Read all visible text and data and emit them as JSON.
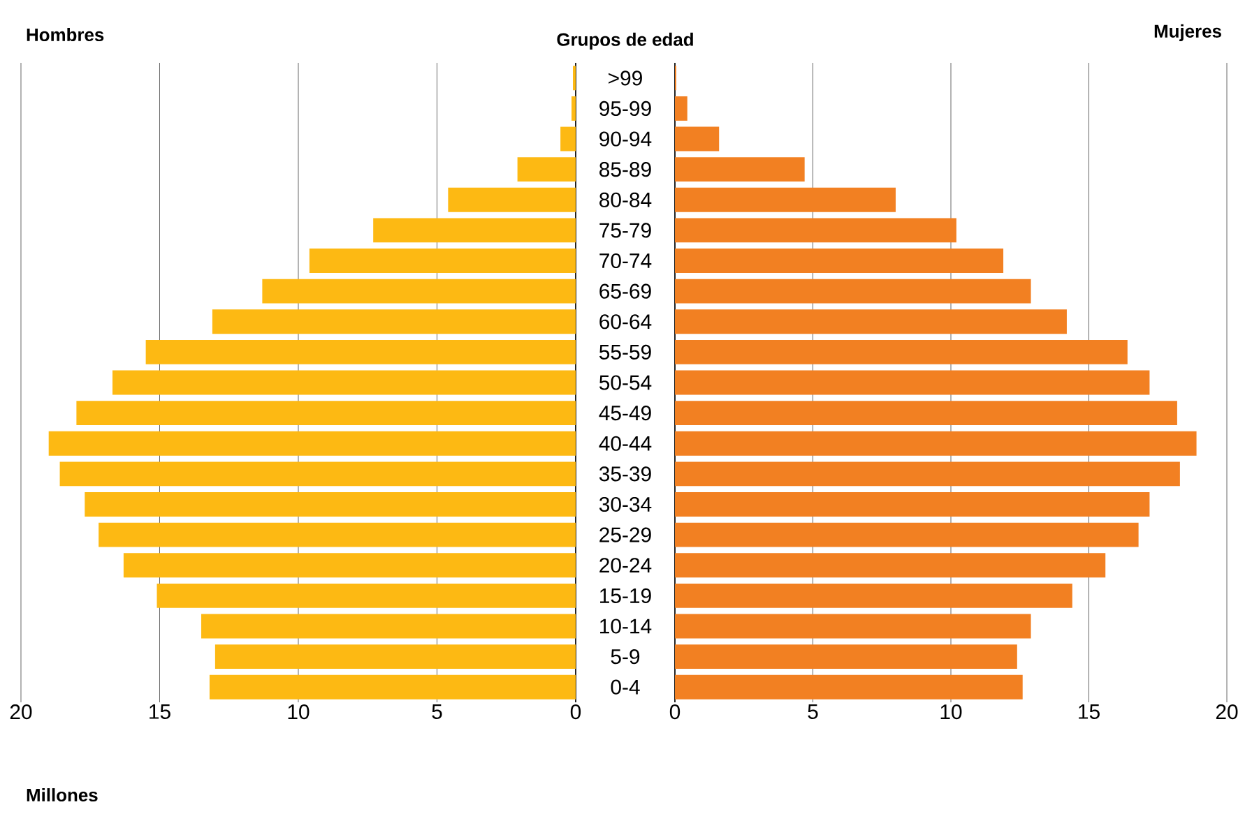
{
  "chart_data": [
    {
      "type": "bar",
      "orientation": "horizontal",
      "title": "Hombres",
      "ylabel": "Grupos de edad",
      "xlabel": "Millones",
      "categories": [
        ">99",
        "95-99",
        "90-94",
        "85-89",
        "80-84",
        "75-79",
        "70-74",
        "65-69",
        "60-64",
        "55-59",
        "50-54",
        "45-49",
        "40-44",
        "35-39",
        "30-34",
        "25-29",
        "20-24",
        "15-19",
        "10-14",
        "5-9",
        "0-4"
      ],
      "values": [
        0.1,
        0.15,
        0.55,
        2.1,
        4.6,
        7.3,
        9.6,
        11.3,
        13.1,
        15.5,
        16.7,
        18.0,
        19.0,
        18.6,
        17.7,
        17.2,
        16.3,
        15.1,
        13.5,
        13.0,
        13.2
      ],
      "color": "#fdb913",
      "xlim": [
        20,
        0
      ],
      "xticks": [
        20,
        15,
        10,
        5,
        0
      ],
      "grid": "x"
    },
    {
      "type": "bar",
      "orientation": "horizontal",
      "title": "Mujeres",
      "categories": [
        null,
        null,
        null,
        null,
        null,
        null,
        null,
        null,
        null,
        null,
        null,
        null,
        null,
        null,
        null,
        null,
        null,
        null,
        null,
        null,
        null
      ],
      "values": [
        0.05,
        0.45,
        1.6,
        4.7,
        8.0,
        10.2,
        11.9,
        12.9,
        14.2,
        16.4,
        17.2,
        18.2,
        18.9,
        18.3,
        17.2,
        16.8,
        15.6,
        14.4,
        12.9,
        12.4,
        12.6
      ],
      "color": "#f28022",
      "xlim": [
        0,
        20
      ],
      "xticks": [
        0,
        5,
        10,
        15,
        20
      ],
      "grid": "x"
    }
  ]
}
